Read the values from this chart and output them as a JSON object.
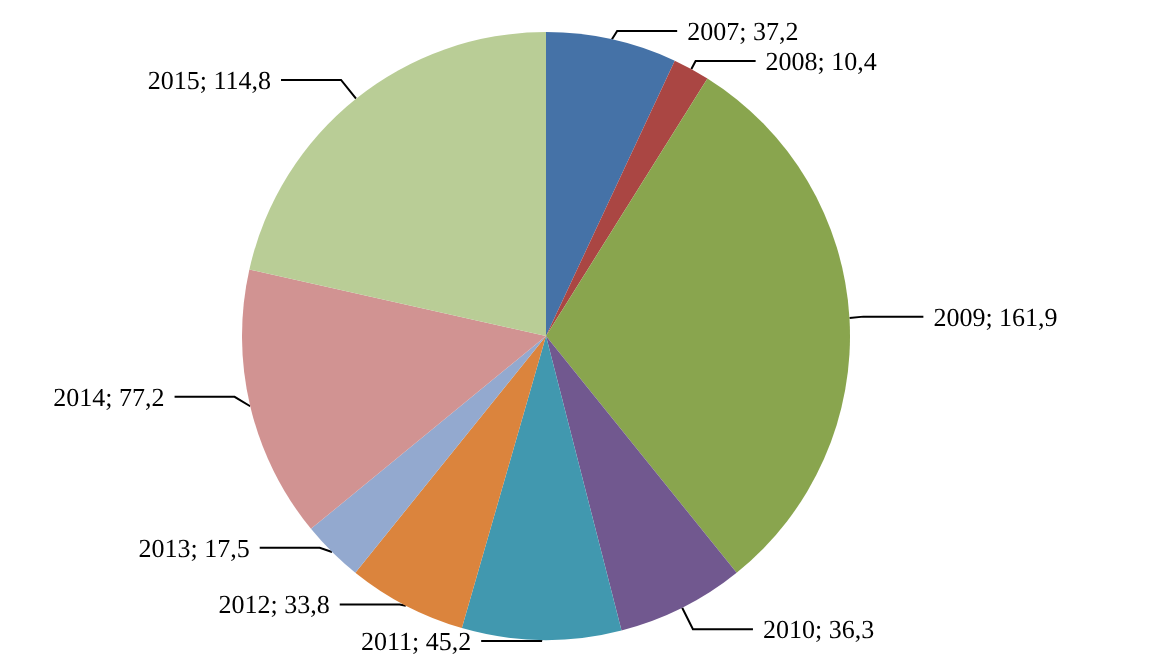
{
  "chart_data": {
    "type": "pie",
    "categories": [
      "2007",
      "2008",
      "2009",
      "2010",
      "2011",
      "2012",
      "2013",
      "2014",
      "2015"
    ],
    "values": [
      37.2,
      10.4,
      161.9,
      36.3,
      45.2,
      33.8,
      17.5,
      77.2,
      114.8
    ],
    "value_labels": [
      "37,2",
      "10,4",
      "161,9",
      "36,3",
      "45,2",
      "33,8",
      "17,5",
      "77,2",
      "114,8"
    ],
    "colors": [
      "#4572a7",
      "#aa4643",
      "#89a54e",
      "#71588f",
      "#4198af",
      "#db843d",
      "#93a9cf",
      "#d19392",
      "#b9cd96"
    ],
    "legend": false
  }
}
